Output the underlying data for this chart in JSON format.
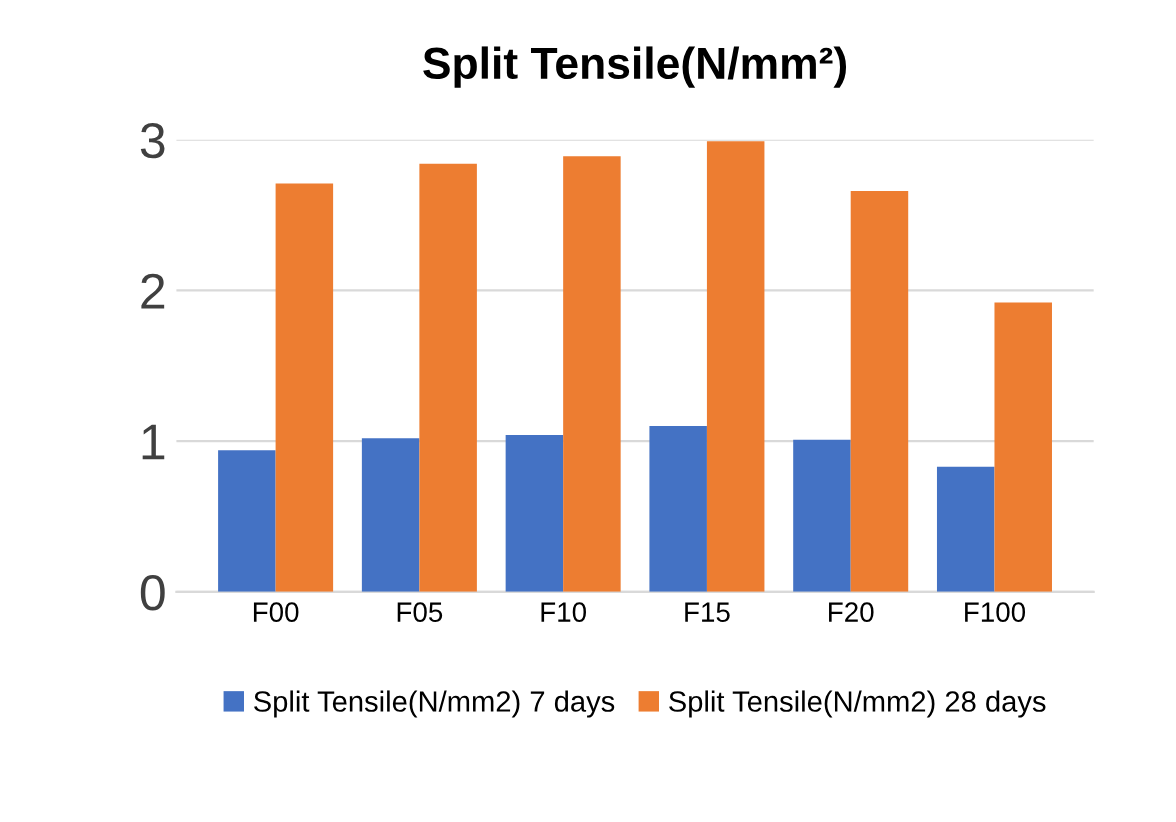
{
  "chart_data": {
    "type": "bar",
    "title": "Split Tensile(N/mm²)",
    "categories": [
      "F00",
      "F05",
      "F10",
      "F15",
      "F20",
      "F100"
    ],
    "series": [
      {
        "name": "Split Tensile(N/mm2) 7 days",
        "color": "#4472c4",
        "values": [
          0.94,
          1.02,
          1.04,
          1.1,
          1.01,
          0.83
        ]
      },
      {
        "name": "Split Tensile(N/mm2) 28 days",
        "color": "#ed7d31",
        "values": [
          2.71,
          2.84,
          2.89,
          2.99,
          2.66,
          1.92
        ]
      }
    ],
    "ylim": [
      0,
      3
    ],
    "yticks": [
      0,
      1,
      2,
      3
    ],
    "grid": "y",
    "legend": "bottom"
  }
}
